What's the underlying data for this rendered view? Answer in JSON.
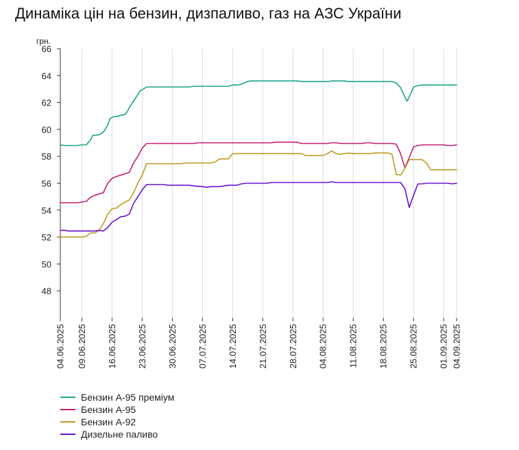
{
  "title": "Динаміка цін на бензин, дизпаливо, газ на АЗС України",
  "chart_data": {
    "type": "line",
    "y_unit": "грн.",
    "ylim": [
      46,
      66
    ],
    "y_ticks": [
      48,
      50,
      52,
      54,
      56,
      58,
      60,
      62,
      64,
      66
    ],
    "x_ticks": [
      "04.06.2025",
      "09.06.2025",
      "16.06.2025",
      "23.06.2025",
      "30.06.2025",
      "07.07.2025",
      "14.07.2025",
      "21.07.2025",
      "28.07.2025",
      "04.08.2025",
      "11.08.2025",
      "18.08.2025",
      "25.08.2025",
      "01.09.2025",
      "04.09.2025"
    ],
    "x_tick_days": [
      0,
      5,
      12,
      19,
      26,
      33,
      40,
      47,
      54,
      61,
      68,
      75,
      82,
      89,
      92
    ],
    "x_range": [
      0,
      92
    ],
    "grid": "vertical",
    "legend_position": "bottom-left",
    "series": [
      {
        "name": "Бензин А-95 преміум",
        "color": "#1aa38a",
        "points": [
          [
            0,
            58.85
          ],
          [
            1,
            58.8
          ],
          [
            4,
            58.8
          ],
          [
            5,
            58.85
          ],
          [
            6,
            58.85
          ],
          [
            7,
            59.2
          ],
          [
            7.5,
            59.55
          ],
          [
            9,
            59.6
          ],
          [
            10,
            59.8
          ],
          [
            11,
            60.3
          ],
          [
            11.5,
            60.8
          ],
          [
            12.5,
            60.95
          ],
          [
            13,
            60.95
          ],
          [
            14,
            61.05
          ],
          [
            15,
            61.1
          ],
          [
            15.5,
            61.3
          ],
          [
            16,
            61.6
          ],
          [
            17,
            62.1
          ],
          [
            18,
            62.6
          ],
          [
            18.5,
            62.85
          ],
          [
            19,
            62.95
          ],
          [
            20,
            63.15
          ],
          [
            21,
            63.15
          ],
          [
            30,
            63.15
          ],
          [
            31,
            63.2
          ],
          [
            39,
            63.2
          ],
          [
            40,
            63.3
          ],
          [
            41,
            63.3
          ],
          [
            42,
            63.35
          ],
          [
            43,
            63.5
          ],
          [
            44,
            63.6
          ],
          [
            55,
            63.6
          ],
          [
            56,
            63.55
          ],
          [
            62,
            63.55
          ],
          [
            63,
            63.6
          ],
          [
            66,
            63.6
          ],
          [
            67,
            63.55
          ],
          [
            77,
            63.55
          ],
          [
            78,
            63.45
          ],
          [
            79,
            63.1
          ],
          [
            80,
            62.4
          ],
          [
            80.5,
            62.1
          ],
          [
            81,
            62.4
          ],
          [
            82,
            63.15
          ],
          [
            83,
            63.25
          ],
          [
            84,
            63.3
          ],
          [
            92,
            63.3
          ]
        ]
      },
      {
        "name": "Бензин А-95",
        "color": "#c71a70",
        "points": [
          [
            0,
            54.55
          ],
          [
            3,
            54.55
          ],
          [
            4,
            54.55
          ],
          [
            5,
            54.6
          ],
          [
            6,
            54.65
          ],
          [
            7,
            54.95
          ],
          [
            8,
            55.1
          ],
          [
            9,
            55.2
          ],
          [
            10,
            55.3
          ],
          [
            11,
            56
          ],
          [
            12,
            56.35
          ],
          [
            13,
            56.5
          ],
          [
            14,
            56.6
          ],
          [
            15,
            56.7
          ],
          [
            16,
            56.8
          ],
          [
            17,
            57.5
          ],
          [
            18,
            58
          ],
          [
            19,
            58.6
          ],
          [
            20,
            58.95
          ],
          [
            31,
            58.95
          ],
          [
            32,
            59
          ],
          [
            49,
            59
          ],
          [
            50,
            59.05
          ],
          [
            55,
            59.05
          ],
          [
            56,
            58.95
          ],
          [
            62,
            58.95
          ],
          [
            63,
            59
          ],
          [
            64,
            59
          ],
          [
            65,
            58.95
          ],
          [
            70,
            58.95
          ],
          [
            71,
            59
          ],
          [
            72,
            59
          ],
          [
            73,
            58.95
          ],
          [
            77,
            58.95
          ],
          [
            78,
            58.9
          ],
          [
            79,
            58.2
          ],
          [
            80,
            57.15
          ],
          [
            81,
            57.9
          ],
          [
            82,
            58.7
          ],
          [
            83,
            58.8
          ],
          [
            84,
            58.85
          ],
          [
            89,
            58.85
          ],
          [
            90,
            58.8
          ],
          [
            91,
            58.8
          ],
          [
            92,
            58.85
          ]
        ]
      },
      {
        "name": "Бензин А-92",
        "color": "#c19a20",
        "points": [
          [
            0,
            52
          ],
          [
            5,
            52
          ],
          [
            6,
            52.05
          ],
          [
            7,
            52.3
          ],
          [
            8,
            52.3
          ],
          [
            9,
            52.5
          ],
          [
            10,
            53
          ],
          [
            11,
            53.7
          ],
          [
            12,
            54.1
          ],
          [
            13,
            54.15
          ],
          [
            14,
            54.4
          ],
          [
            15,
            54.6
          ],
          [
            16,
            54.75
          ],
          [
            17,
            55.3
          ],
          [
            18,
            56
          ],
          [
            19,
            56.6
          ],
          [
            20,
            57.45
          ],
          [
            28,
            57.45
          ],
          [
            29,
            57.5
          ],
          [
            35,
            57.5
          ],
          [
            36,
            57.6
          ],
          [
            37,
            57.8
          ],
          [
            38,
            57.8
          ],
          [
            39,
            57.8
          ],
          [
            40,
            58.2
          ],
          [
            56,
            58.2
          ],
          [
            57,
            58.05
          ],
          [
            61,
            58.05
          ],
          [
            62,
            58.2
          ],
          [
            63,
            58.4
          ],
          [
            64,
            58.2
          ],
          [
            65,
            58.15
          ],
          [
            66,
            58.2
          ],
          [
            67,
            58.25
          ],
          [
            68,
            58.2
          ],
          [
            72,
            58.2
          ],
          [
            73,
            58.25
          ],
          [
            76,
            58.25
          ],
          [
            77,
            58.15
          ],
          [
            78,
            56.65
          ],
          [
            79,
            56.6
          ],
          [
            80,
            57.1
          ],
          [
            81,
            57.75
          ],
          [
            84,
            57.75
          ],
          [
            85,
            57.5
          ],
          [
            86,
            57
          ],
          [
            92,
            57
          ]
        ]
      },
      {
        "name": "Дизельне паливо",
        "color": "#6a0fd0",
        "points": [
          [
            0,
            52.5
          ],
          [
            1,
            52.5
          ],
          [
            2,
            52.45
          ],
          [
            8,
            52.45
          ],
          [
            9,
            52.5
          ],
          [
            10,
            52.45
          ],
          [
            11,
            52.7
          ],
          [
            12,
            53.1
          ],
          [
            13,
            53.3
          ],
          [
            14,
            53.5
          ],
          [
            15,
            53.55
          ],
          [
            16,
            53.7
          ],
          [
            17,
            54.5
          ],
          [
            18,
            55
          ],
          [
            19,
            55.5
          ],
          [
            20,
            55.9
          ],
          [
            24,
            55.9
          ],
          [
            25,
            55.85
          ],
          [
            30,
            55.85
          ],
          [
            31,
            55.8
          ],
          [
            33,
            55.75
          ],
          [
            34,
            55.7
          ],
          [
            35,
            55.75
          ],
          [
            37,
            55.75
          ],
          [
            38,
            55.8
          ],
          [
            39,
            55.85
          ],
          [
            41,
            55.85
          ],
          [
            42,
            55.95
          ],
          [
            43,
            56
          ],
          [
            48,
            56
          ],
          [
            49,
            56.05
          ],
          [
            62,
            56.05
          ],
          [
            63,
            56.1
          ],
          [
            64,
            56.05
          ],
          [
            79,
            56.05
          ],
          [
            80,
            55.6
          ],
          [
            81,
            54.2
          ],
          [
            82,
            55.1
          ],
          [
            83,
            55.95
          ],
          [
            84,
            55.95
          ],
          [
            85,
            56
          ],
          [
            90,
            56
          ],
          [
            91,
            55.95
          ],
          [
            92,
            56
          ]
        ]
      }
    ]
  }
}
